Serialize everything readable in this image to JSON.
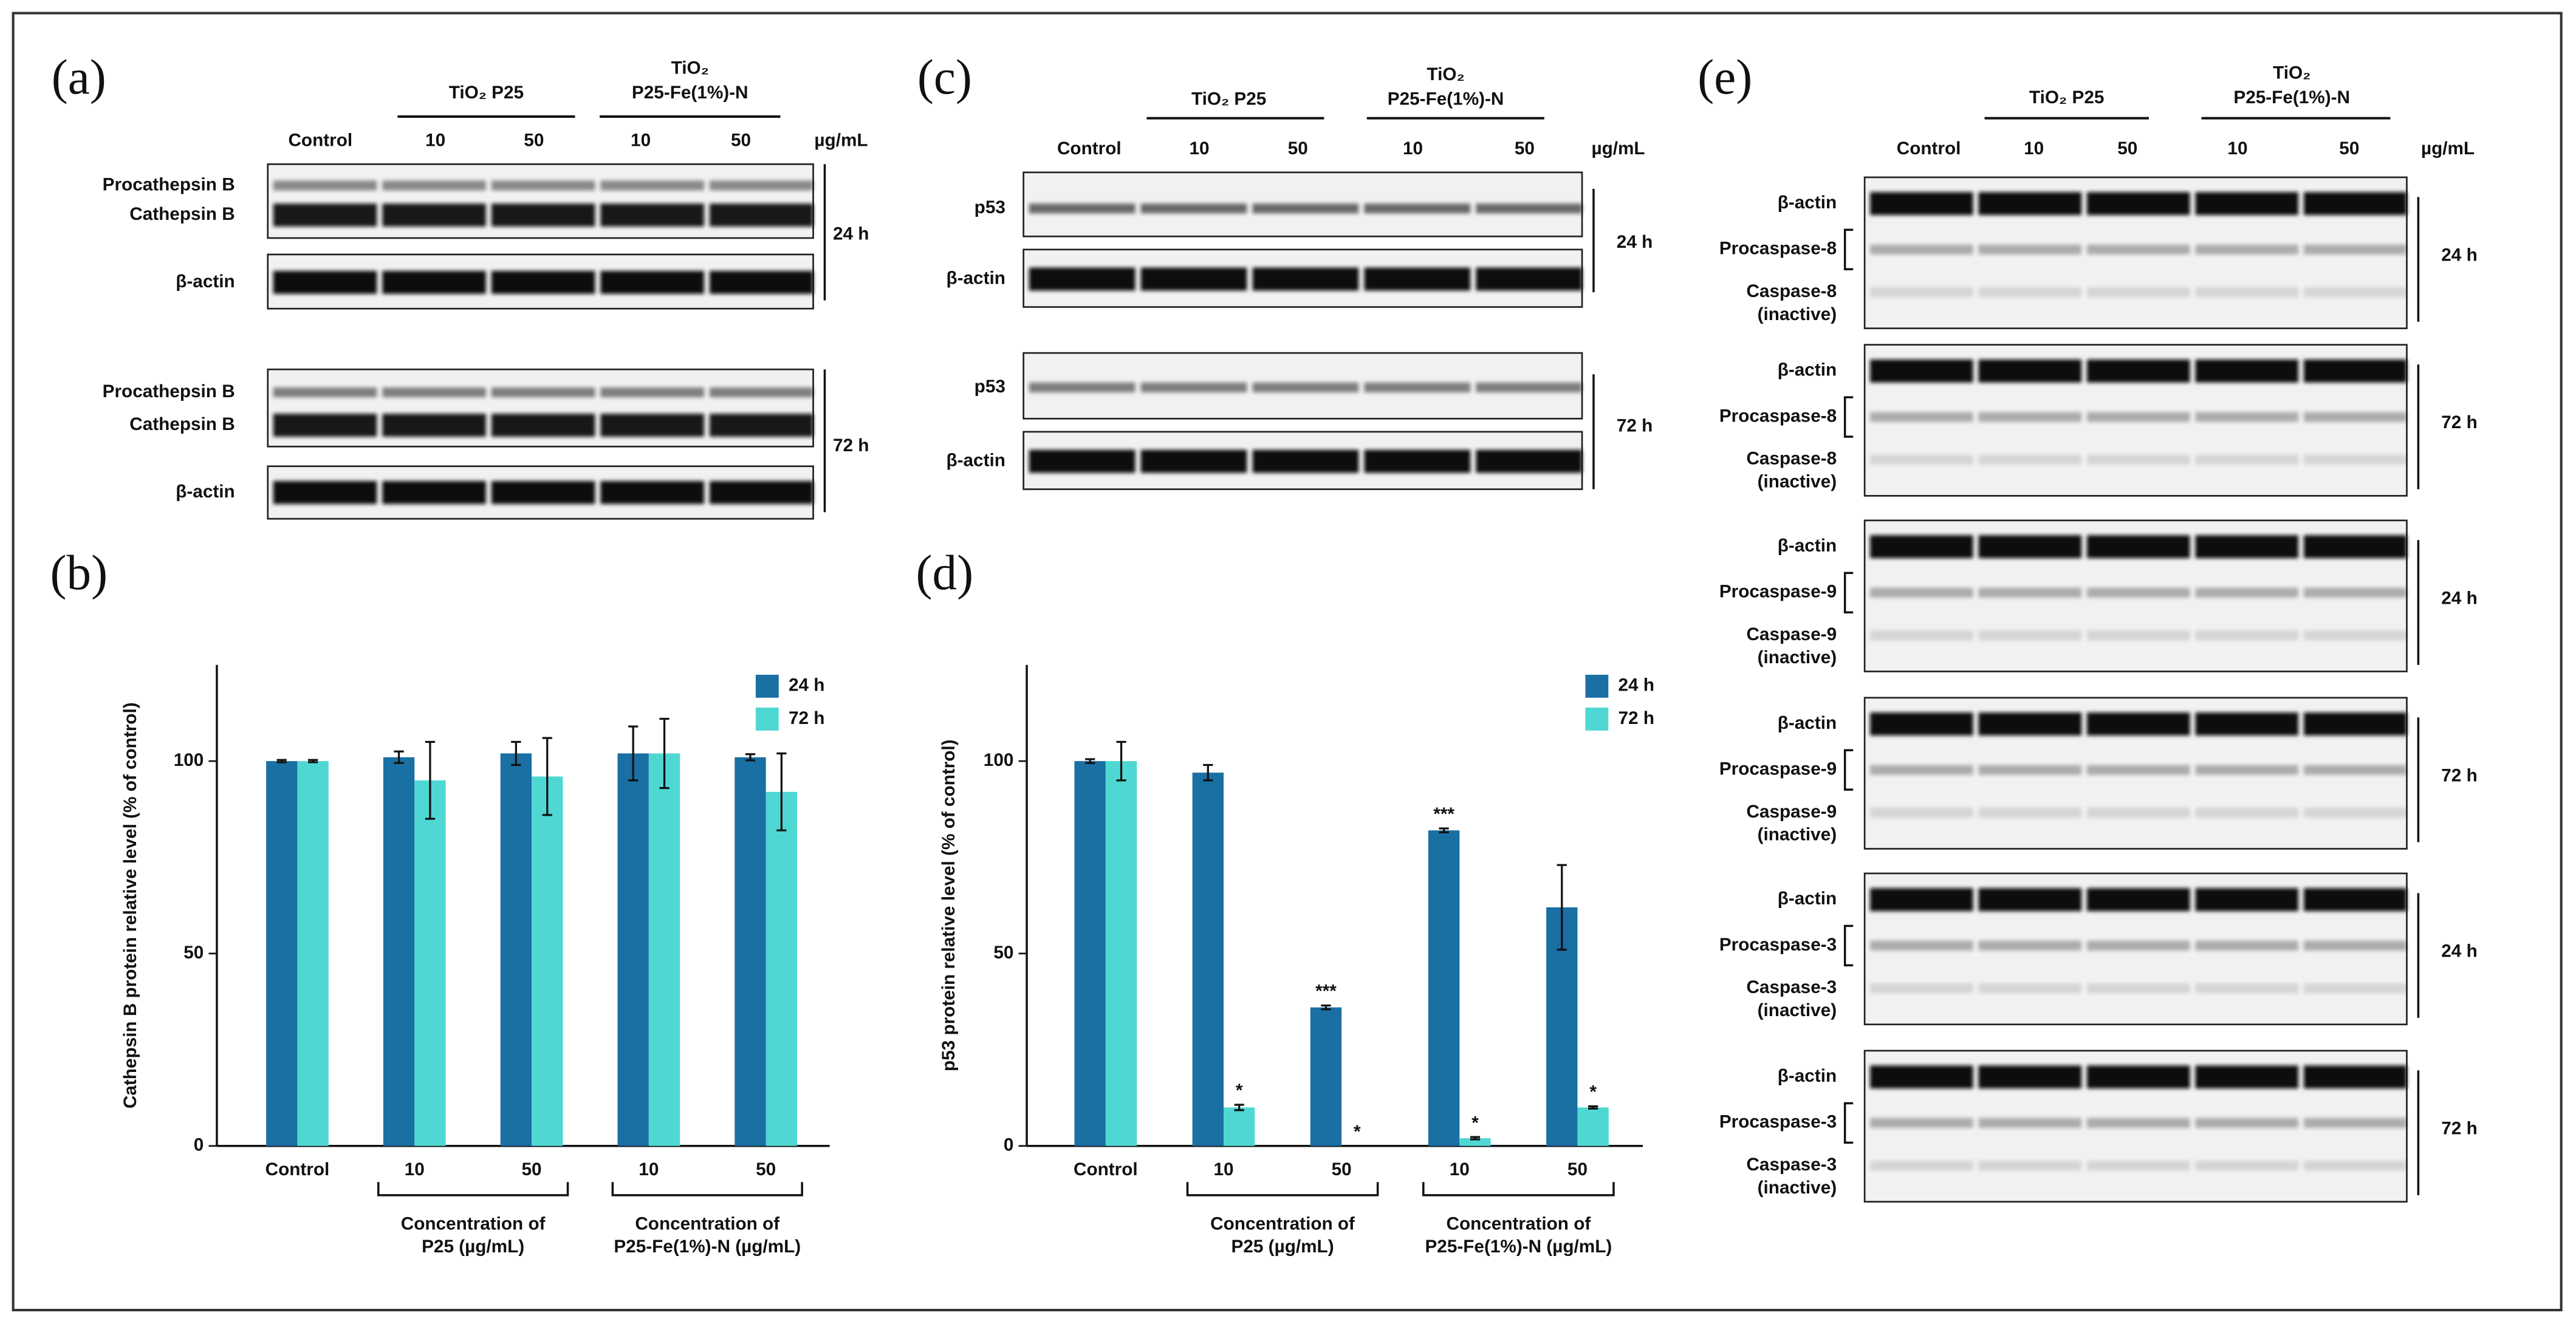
{
  "figure": {
    "panel_labels": [
      "(a)",
      "(b)",
      "(c)",
      "(d)",
      "(e)"
    ],
    "blot_panels": [
      {
        "header": {
          "control": "Control",
          "group1": [
            "TiO₂ P25"
          ],
          "group2": [
            "TiO₂",
            "P25-Fe(1%)-N"
          ],
          "doses": [
            "10",
            "50",
            "10",
            "50"
          ],
          "unit": "µg/mL"
        },
        "blocks": [
          {
            "time": "24 h",
            "boxes": [
              {
                "labels": [
                  [
                    "Procathepsin B"
                  ],
                  [
                    "Cathepsin B"
                  ]
                ]
              },
              {
                "labels": [
                  [
                    "β-actin"
                  ]
                ]
              }
            ]
          },
          {
            "time": "72 h",
            "boxes": [
              {
                "labels": [
                  [
                    "Procathepsin B"
                  ],
                  [
                    "Cathepsin B"
                  ]
                ]
              },
              {
                "labels": [
                  [
                    "β-actin"
                  ]
                ]
              }
            ]
          }
        ]
      },
      {
        "header": {
          "control": "Control",
          "group1": [
            "TiO₂ P25"
          ],
          "group2": [
            "TiO₂",
            "P25-Fe(1%)-N"
          ],
          "doses": [
            "10",
            "50",
            "10",
            "50"
          ],
          "unit": "µg/mL"
        },
        "blocks": [
          {
            "time": "24 h",
            "boxes": [
              {
                "labels": [
                  [
                    "p53"
                  ]
                ]
              },
              {
                "labels": [
                  [
                    "β-actin"
                  ]
                ]
              }
            ]
          },
          {
            "time": "72 h",
            "boxes": [
              {
                "labels": [
                  [
                    "p53"
                  ]
                ]
              },
              {
                "labels": [
                  [
                    "β-actin"
                  ]
                ]
              }
            ]
          }
        ]
      },
      {
        "header": {
          "control": "Control",
          "group1": [
            "TiO₂ P25"
          ],
          "group2": [
            "TiO₂",
            "P25-Fe(1%)-N"
          ],
          "doses": [
            "10",
            "50",
            "10",
            "50"
          ],
          "unit": "µg/mL"
        },
        "blocks": [
          {
            "time": "24 h",
            "boxes": [
              {
                "labels": [
                  [
                    "β-actin"
                  ],
                  [
                    "Procaspase-8"
                  ],
                  [
                    "Caspase-8",
                    "(inactive)"
                  ]
                ]
              }
            ]
          },
          {
            "time": "72 h",
            "boxes": [
              {
                "labels": [
                  [
                    "β-actin"
                  ],
                  [
                    "Procaspase-8"
                  ],
                  [
                    "Caspase-8",
                    "(inactive)"
                  ]
                ]
              }
            ]
          },
          {
            "time": "24 h",
            "boxes": [
              {
                "labels": [
                  [
                    "β-actin"
                  ],
                  [
                    "Procaspase-9"
                  ],
                  [
                    "Caspase-9",
                    "(inactive)"
                  ]
                ]
              }
            ]
          },
          {
            "time": "72 h",
            "boxes": [
              {
                "labels": [
                  [
                    "β-actin"
                  ],
                  [
                    "Procaspase-9"
                  ],
                  [
                    "Caspase-9",
                    "(inactive)"
                  ]
                ]
              }
            ]
          },
          {
            "time": "24 h",
            "boxes": [
              {
                "labels": [
                  [
                    "β-actin"
                  ],
                  [
                    "Procaspase-3"
                  ],
                  [
                    "Caspase-3",
                    "(inactive)"
                  ]
                ]
              }
            ]
          },
          {
            "time": "72 h",
            "boxes": [
              {
                "labels": [
                  [
                    "β-actin"
                  ],
                  [
                    "Procaspase-3"
                  ],
                  [
                    "Caspase-3",
                    "(inactive)"
                  ]
                ]
              }
            ]
          }
        ]
      }
    ]
  },
  "chart_data": [
    {
      "type": "bar",
      "y_label": "Cathepsin B protein relative level (% of control)",
      "categories": [
        "Control",
        "10",
        "50",
        "10",
        "50"
      ],
      "category_groups": [
        {
          "lines": [
            "Concentration of",
            "P25 (µg/mL)"
          ]
        },
        {
          "lines": [
            "Concentration of",
            "P25-Fe(1%)-N (µg/mL)"
          ]
        }
      ],
      "series": [
        {
          "name": "24 h",
          "color": "#1a6fa3",
          "values": [
            100,
            101,
            102,
            102,
            101
          ],
          "errors": [
            0.3,
            1.5,
            3,
            7,
            0.8
          ]
        },
        {
          "name": "72 h",
          "color": "#4fd8d3",
          "values": [
            100,
            95,
            96,
            102,
            92
          ],
          "errors": [
            0.3,
            10,
            10,
            9,
            10
          ]
        }
      ],
      "ylim": [
        0,
        125
      ],
      "yticks": [
        0,
        50,
        100
      ],
      "grid": false,
      "legend": "upper right"
    },
    {
      "type": "bar",
      "y_label": "p53 protein relative level (% of control)",
      "categories": [
        "Control",
        "10",
        "50",
        "10",
        "50"
      ],
      "category_groups": [
        {
          "lines": [
            "Concentration of",
            "P25 (µg/mL)"
          ]
        },
        {
          "lines": [
            "Concentration of",
            "P25-Fe(1%)-N (µg/mL)"
          ]
        }
      ],
      "series": [
        {
          "name": "24 h",
          "color": "#1a6fa3",
          "values": [
            100,
            97,
            36,
            82,
            62
          ],
          "errors": [
            0.5,
            2,
            0.5,
            0.5,
            11
          ],
          "significance": [
            null,
            null,
            "***",
            "***",
            null
          ]
        },
        {
          "name": "72 h",
          "color": "#4fd8d3",
          "values": [
            100,
            10,
            0,
            2,
            10
          ],
          "errors": [
            5,
            0.7,
            0,
            0.3,
            0.3
          ],
          "significance": [
            null,
            "*",
            "*",
            "*",
            "*"
          ]
        }
      ],
      "ylim": [
        0,
        125
      ],
      "yticks": [
        0,
        50,
        100
      ],
      "grid": false,
      "legend": "upper right"
    }
  ]
}
